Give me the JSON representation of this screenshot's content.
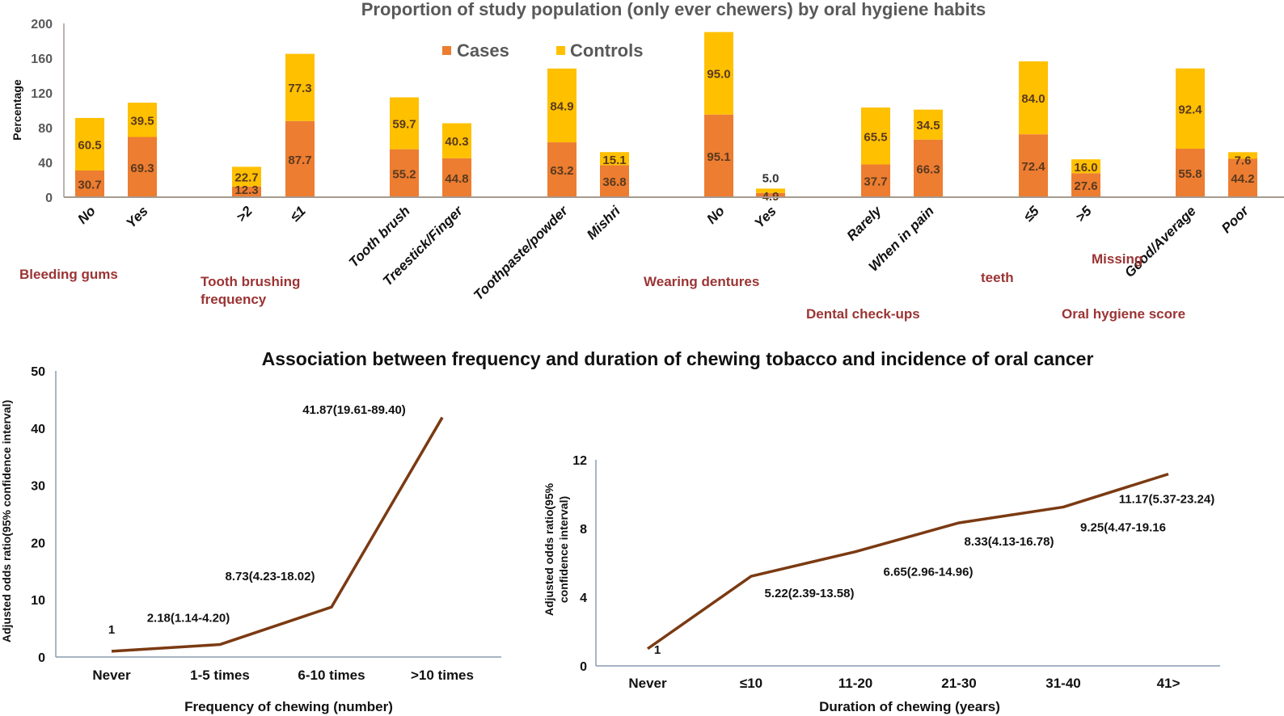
{
  "colors": {
    "cases": "#ed7d31",
    "controls": "#ffc000",
    "line": "#7b3a12",
    "group_label": "#9b3434",
    "bar_axis": "#a59a8f",
    "line_axis": "#8a9bb0"
  },
  "chart_data": [
    {
      "type": "bar",
      "stacked": true,
      "title": "Proportion of study population (only ever chewers) by oral hygiene habits",
      "ylabel": "Percentage",
      "xlabel": "",
      "ylim": [
        0,
        200
      ],
      "yticks": [
        0,
        40,
        80,
        120,
        160,
        200
      ],
      "legend": {
        "placement": "top-center",
        "entries": [
          "Cases",
          "Controls"
        ]
      },
      "grid": false,
      "groups": [
        {
          "label": "Bleeding gums",
          "categories": [
            "No",
            "Yes"
          ]
        },
        {
          "label": "Tooth brushing frequency",
          "categories": [
            ">2",
            "≤1"
          ]
        },
        {
          "label": "",
          "categories": [
            "Tooth brush",
            "Treestick/Finger"
          ]
        },
        {
          "label": "",
          "categories": [
            "Toothpaste/powder",
            "Mishri"
          ]
        },
        {
          "label": "Wearing dentures",
          "categories": [
            "No",
            "Yes"
          ]
        },
        {
          "label": "Dental check-ups",
          "categories": [
            "Rarely",
            "When in pain"
          ]
        },
        {
          "label": "Missing teeth",
          "categories": [
            "≤5",
            ">5"
          ]
        },
        {
          "label": "Oral hygiene score",
          "categories": [
            "Good/Average",
            "Poor"
          ]
        }
      ],
      "categories": [
        "No",
        "Yes",
        ">2",
        "≤1",
        "Tooth brush",
        "Treestick/Finger",
        "Toothpaste/powder",
        "Mishri",
        "No",
        "Yes",
        "Rarely",
        "When in pain",
        "≤5",
        ">5",
        "Good/Average",
        "Poor"
      ],
      "series": [
        {
          "name": "Cases",
          "values": [
            30.7,
            69.3,
            12.3,
            87.7,
            55.2,
            44.8,
            63.2,
            36.8,
            95.1,
            4.9,
            37.7,
            66.3,
            72.4,
            27.6,
            55.8,
            44.2
          ]
        },
        {
          "name": "Controls",
          "values": [
            60.5,
            39.5,
            22.7,
            77.3,
            59.7,
            40.3,
            84.9,
            15.1,
            95.0,
            5.0,
            65.5,
            34.5,
            84.0,
            16.0,
            92.4,
            7.6
          ]
        }
      ],
      "group_label_text": {
        "bleeding": "Bleeding gums",
        "brushing_1": "Tooth brushing",
        "brushing_2": "frequency",
        "dentures": "Wearing dentures",
        "checkups": "Dental check-ups",
        "missing_1": "Missing",
        "missing_2": "teeth",
        "hygiene": "Oral hygiene score"
      }
    },
    {
      "type": "line",
      "title": "Association between frequency and duration of chewing tobacco and incidence of oral cancer",
      "xlabel": "Frequency of chewing (number)",
      "ylabel": "Adjusted odds ratio(95% confidence interval)",
      "ylim": [
        0,
        50
      ],
      "yticks": [
        0,
        10,
        20,
        30,
        40,
        50
      ],
      "grid": false,
      "categories": [
        "Never",
        "1-5 times",
        "6-10 times",
        ">10 times"
      ],
      "values": [
        1,
        2.18,
        8.73,
        41.87
      ],
      "data_labels": [
        "1",
        "2.18(1.14-4.20)",
        "8.73(4.23-18.02)",
        "41.87(19.61-89.40)"
      ]
    },
    {
      "type": "line",
      "title": "",
      "xlabel": "Duration of chewing (years)",
      "ylabel": "Adjusted odds ratio(95% confidence interval)",
      "ylabel_lines": [
        "Adjusted odds ratio(95%",
        "confidence interval)"
      ],
      "ylim": [
        0,
        12
      ],
      "yticks": [
        0,
        4,
        8,
        12
      ],
      "grid": false,
      "categories": [
        "Never",
        "≤10",
        "11-20",
        "21-30",
        "31-40",
        "41>"
      ],
      "values": [
        1,
        5.22,
        6.65,
        8.33,
        9.25,
        11.17
      ],
      "data_labels": [
        "1",
        "5.22(2.39-13.58)",
        "6.65(2.96-14.96)",
        "8.33(4.13-16.78)",
        "9.25(4.47-19.16",
        "11.17(5.37-23.24)"
      ]
    }
  ]
}
